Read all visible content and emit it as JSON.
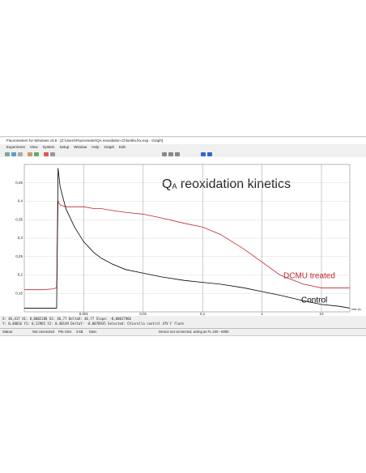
{
  "window": {
    "title": "Fluorometers for Windows v3.6 - [Z:\\Users\\Fluorometer\\QA reoxidation Chlorella.fsx.exp - Graph]",
    "menu": [
      "Experiment",
      "View",
      "System",
      "Setup",
      "Window",
      "Help",
      "Graph",
      "Edit"
    ],
    "info": [
      "X: 46,417   X1: 0,0002188   X2: 46,77   DeltaX: 46,77   Slope: -0,00017966",
      "Y: 0,40016   Y1: 0,22965   Y2: 0,40149   DeltaY: -0,0078935   Selected: Chlorella control 47V F flash"
    ],
    "status": {
      "status_label": "Status:",
      "status": "Not connected",
      "size_label": "File Size:",
      "size": "3 kB",
      "date_label": "Date:",
      "device": "Device not connected, acting as FL 100 - 8000"
    }
  },
  "chart_data": {
    "type": "line",
    "title_parts": [
      "Q",
      "A",
      " reoxidation kinetics"
    ],
    "x_label": "time (s)",
    "x": [
      0.0001,
      0.0002,
      0.0003,
      0.00035,
      0.00037,
      0.0004,
      0.0005,
      0.0007,
      0.001,
      0.0015,
      0.002,
      0.003,
      0.005,
      0.01,
      0.02,
      0.05,
      0.1,
      0.2,
      0.5,
      1,
      2,
      5,
      10,
      20,
      30
    ],
    "series": [
      {
        "name": "DCMU treated",
        "color": "#c0272d",
        "values": [
          0.16,
          0.16,
          0.162,
          0.165,
          0.4,
          0.39,
          0.385,
          0.385,
          0.385,
          0.38,
          0.38,
          0.375,
          0.37,
          0.365,
          0.355,
          0.34,
          0.33,
          0.31,
          0.27,
          0.235,
          0.2,
          0.175,
          0.165,
          0.165,
          0.165
        ]
      },
      {
        "name": "Control",
        "color": "#000000",
        "values": [
          0.11,
          0.11,
          0.11,
          0.11,
          0.49,
          0.44,
          0.38,
          0.33,
          0.29,
          0.26,
          0.245,
          0.23,
          0.215,
          0.205,
          0.195,
          0.185,
          0.18,
          0.175,
          0.165,
          0.155,
          0.145,
          0.13,
          0.12,
          0.115,
          0.11
        ]
      }
    ],
    "xlog": true,
    "xlim": [
      0.0001,
      30
    ],
    "xticks": [
      {
        "value": 0.001,
        "label": "0,001"
      },
      {
        "value": 0.01,
        "label": "0,01"
      },
      {
        "value": 0.1,
        "label": "0,1"
      },
      1,
      10
    ],
    "ylim": [
      0.1,
      0.5
    ],
    "yticks": [
      {
        "value": 0.15,
        "label": "0,15"
      },
      {
        "value": 0.2,
        "label": "0,2"
      },
      {
        "value": 0.25,
        "label": "0,25"
      },
      {
        "value": 0.3,
        "label": "0,3"
      },
      {
        "value": 0.35,
        "label": "0,35"
      },
      {
        "value": 0.4,
        "label": "0,4"
      },
      {
        "value": 0.45,
        "label": "0,45"
      }
    ],
    "grid": true
  }
}
